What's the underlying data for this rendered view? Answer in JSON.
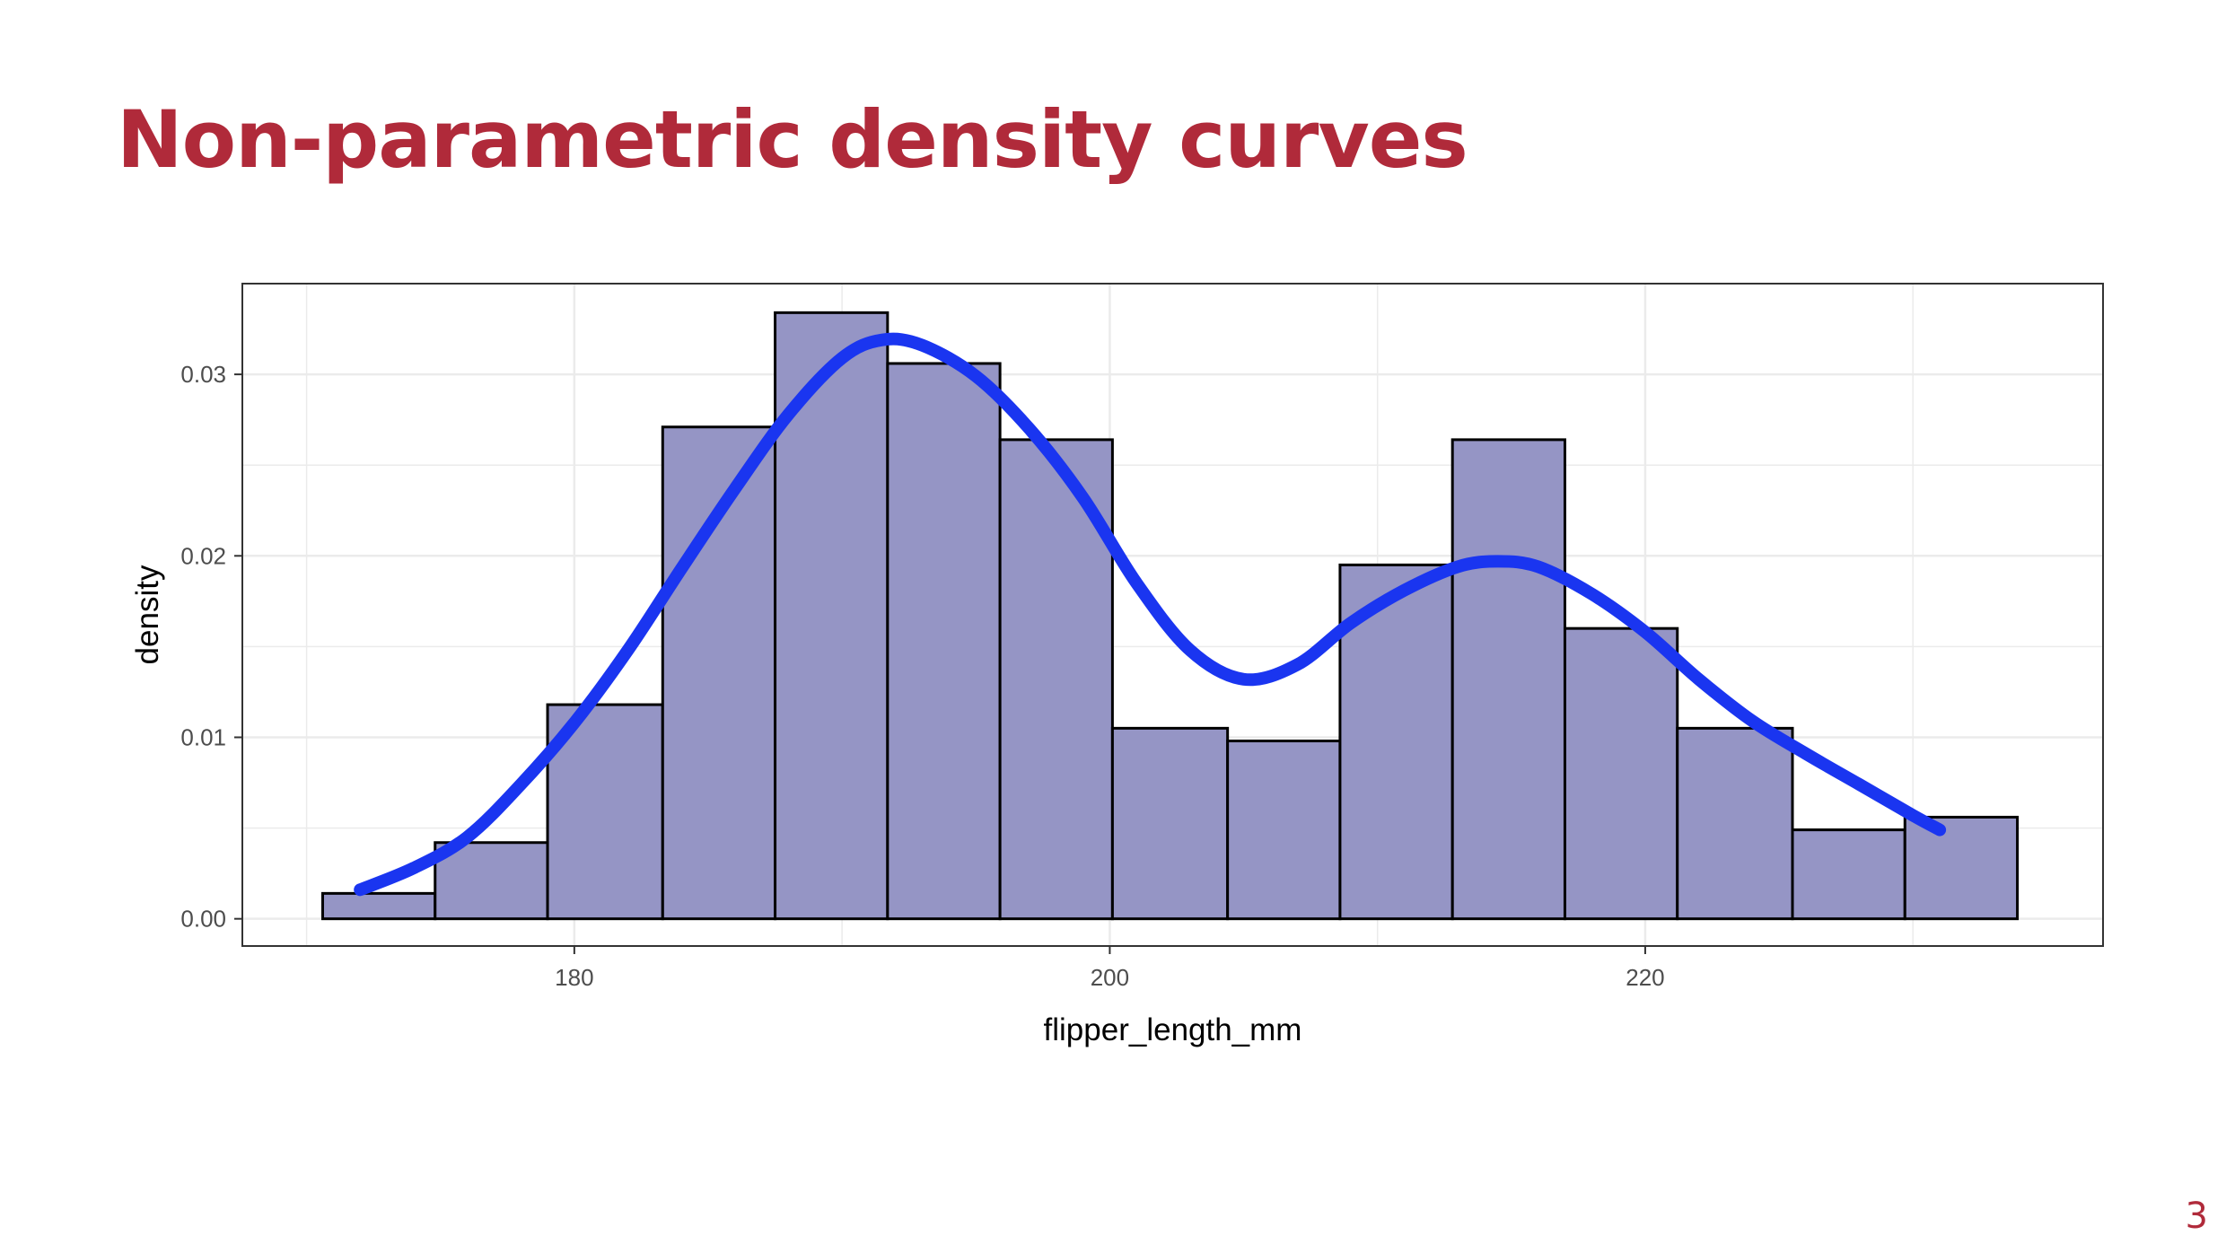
{
  "slide": {
    "title": "Non-parametric density curves",
    "page_number": "3"
  },
  "colors": {
    "title": "#b02a3a",
    "bar_fill": "#9595c5",
    "bar_stroke": "#000000",
    "density_line": "#1a35f0",
    "grid": "#ebebeb",
    "panel_border": "#333333"
  },
  "chart_data": {
    "type": "bar",
    "subtype": "histogram-with-density",
    "title": "",
    "xlabel": "flipper_length_mm",
    "ylabel": "density",
    "xlim": [
      167.6,
      237.1
    ],
    "ylim": [
      -0.0015,
      0.035
    ],
    "x_ticks": [
      180,
      200,
      220
    ],
    "x_tick_labels": [
      "180",
      "200",
      "220"
    ],
    "y_ticks": [
      0.0,
      0.01,
      0.02,
      0.03
    ],
    "y_tick_labels": [
      "0.00",
      "0.01",
      "0.02",
      "0.03"
    ],
    "grid": true,
    "theme": "bw",
    "bins": [
      {
        "x0": 170.6,
        "x1": 174.8,
        "density": 0.0014
      },
      {
        "x0": 174.8,
        "x1": 179.0,
        "density": 0.0042
      },
      {
        "x0": 179.0,
        "x1": 183.3,
        "density": 0.0118
      },
      {
        "x0": 183.3,
        "x1": 187.5,
        "density": 0.0271
      },
      {
        "x0": 187.5,
        "x1": 191.7,
        "density": 0.0334
      },
      {
        "x0": 191.7,
        "x1": 195.9,
        "density": 0.0306
      },
      {
        "x0": 195.9,
        "x1": 200.1,
        "density": 0.0264
      },
      {
        "x0": 200.1,
        "x1": 204.4,
        "density": 0.0105
      },
      {
        "x0": 204.4,
        "x1": 208.6,
        "density": 0.0098
      },
      {
        "x0": 208.6,
        "x1": 212.8,
        "density": 0.0195
      },
      {
        "x0": 212.8,
        "x1": 217.0,
        "density": 0.0264
      },
      {
        "x0": 217.0,
        "x1": 221.2,
        "density": 0.016
      },
      {
        "x0": 221.2,
        "x1": 225.5,
        "density": 0.0105
      },
      {
        "x0": 225.5,
        "x1": 229.7,
        "density": 0.0049
      },
      {
        "x0": 229.7,
        "x1": 233.9,
        "density": 0.0056
      }
    ],
    "density_curve": {
      "x": [
        172,
        174,
        176,
        178,
        180,
        182,
        184,
        186,
        188,
        190,
        191.5,
        193,
        195,
        197,
        199,
        201,
        203,
        205,
        207,
        209,
        211,
        213,
        214.5,
        216,
        218,
        220,
        222,
        224,
        226,
        228,
        230,
        231
      ],
      "y": [
        0.0016,
        0.0028,
        0.0045,
        0.0074,
        0.0108,
        0.0148,
        0.0193,
        0.0237,
        0.0278,
        0.0309,
        0.0319,
        0.0316,
        0.0299,
        0.027,
        0.0232,
        0.0185,
        0.0148,
        0.0132,
        0.014,
        0.0163,
        0.0181,
        0.0194,
        0.0197,
        0.0194,
        0.0179,
        0.0158,
        0.0132,
        0.0109,
        0.0091,
        0.0074,
        0.0057,
        0.0049
      ]
    }
  }
}
